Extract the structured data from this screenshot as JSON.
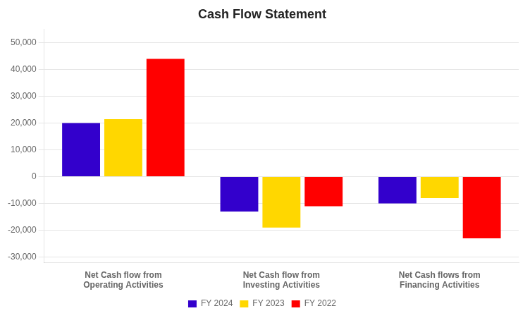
{
  "chart_data": {
    "type": "bar",
    "title": "Cash Flow Statement",
    "categories": [
      "Net Cash flow from\nOperating Activities",
      "Net Cash flow from\nInvesting Activities",
      "Net Cash flows from\nFinancing Activities"
    ],
    "series": [
      {
        "name": "FY 2024",
        "color": "#3300CC",
        "values": [
          20000,
          -13000,
          -10000
        ]
      },
      {
        "name": "FY 2023",
        "color": "#FFD700",
        "values": [
          21500,
          -19000,
          -8000
        ]
      },
      {
        "name": "FY 2022",
        "color": "#FF0000",
        "values": [
          44000,
          -11000,
          -23000
        ]
      }
    ],
    "ylim": [
      -32000,
      55000
    ],
    "yticks": [
      {
        "value": -30000,
        "label": "-30,000"
      },
      {
        "value": -20000,
        "label": "-20,000"
      },
      {
        "value": -10000,
        "label": "-10,000"
      },
      0,
      {
        "value": 10000,
        "label": "10,000"
      },
      {
        "value": 20000,
        "label": "20,000"
      },
      {
        "value": 30000,
        "label": "30,000"
      },
      {
        "value": 40000,
        "label": "40,000"
      },
      {
        "value": 50000,
        "label": "50,000"
      }
    ],
    "grid": true,
    "legend": "bottom"
  }
}
